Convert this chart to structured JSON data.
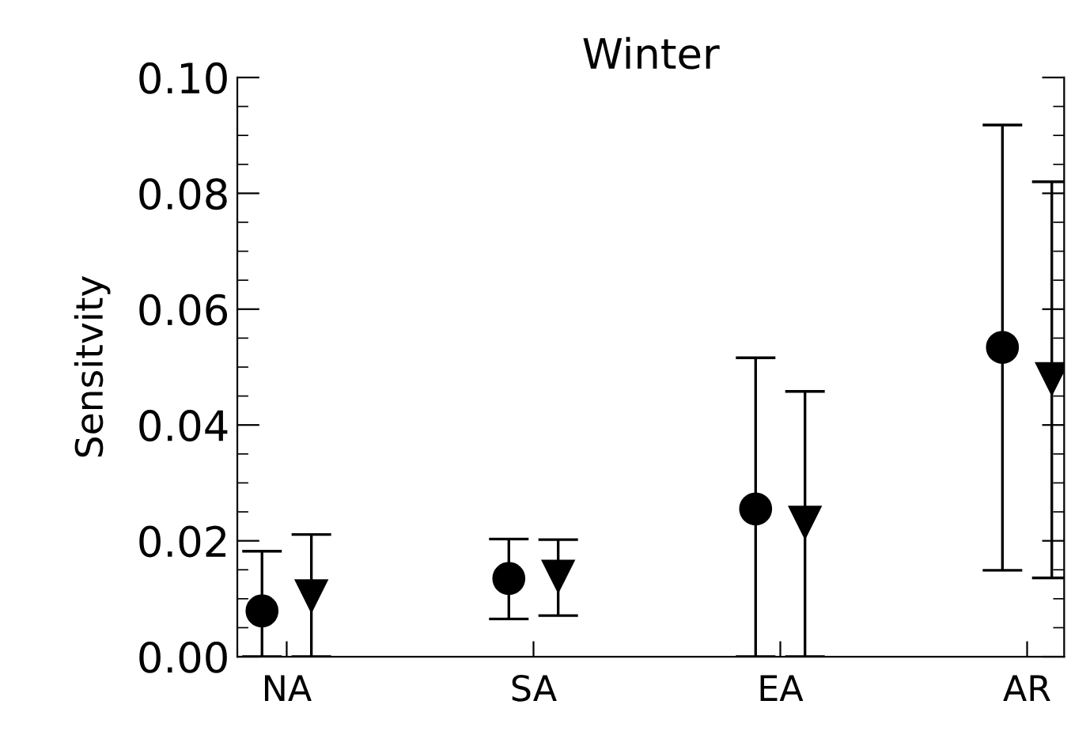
{
  "chart_data": {
    "type": "scatter",
    "title": "Winter",
    "ylabel": "Sensitvity",
    "categories": [
      "NA",
      "SA",
      "EA",
      "AR"
    ],
    "ylim": [
      0,
      0.1
    ],
    "yticks": [
      {
        "value": 0,
        "label": "0.00"
      },
      {
        "value": 0.02,
        "label": "0.02"
      },
      {
        "value": 0.04,
        "label": "0.04"
      },
      {
        "value": 0.06,
        "label": "0.06"
      },
      {
        "value": 0.08,
        "label": "0.08"
      },
      {
        "value": 0.1,
        "label": "0.10"
      }
    ],
    "grid": false,
    "legend": false,
    "series": [
      {
        "color": "#000000",
        "marker": "circle",
        "values": [
          0.0079,
          0.0135,
          0.0255,
          0.0534
        ],
        "errors": [
          [
            0,
            0.0182
          ],
          [
            0.0065,
            0.0203
          ],
          [
            0,
            0.0516
          ],
          [
            0.0149,
            0.0918
          ]
        ]
      },
      {
        "color": "#000000",
        "marker": "triangle",
        "values": [
          0.0105,
          0.0139,
          0.0232,
          0.048
        ],
        "errors": [
          [
            0,
            0.0211
          ],
          [
            0.0071,
            0.0202
          ],
          [
            0,
            0.0458
          ],
          [
            0.0136,
            0.082
          ]
        ]
      }
    ]
  }
}
